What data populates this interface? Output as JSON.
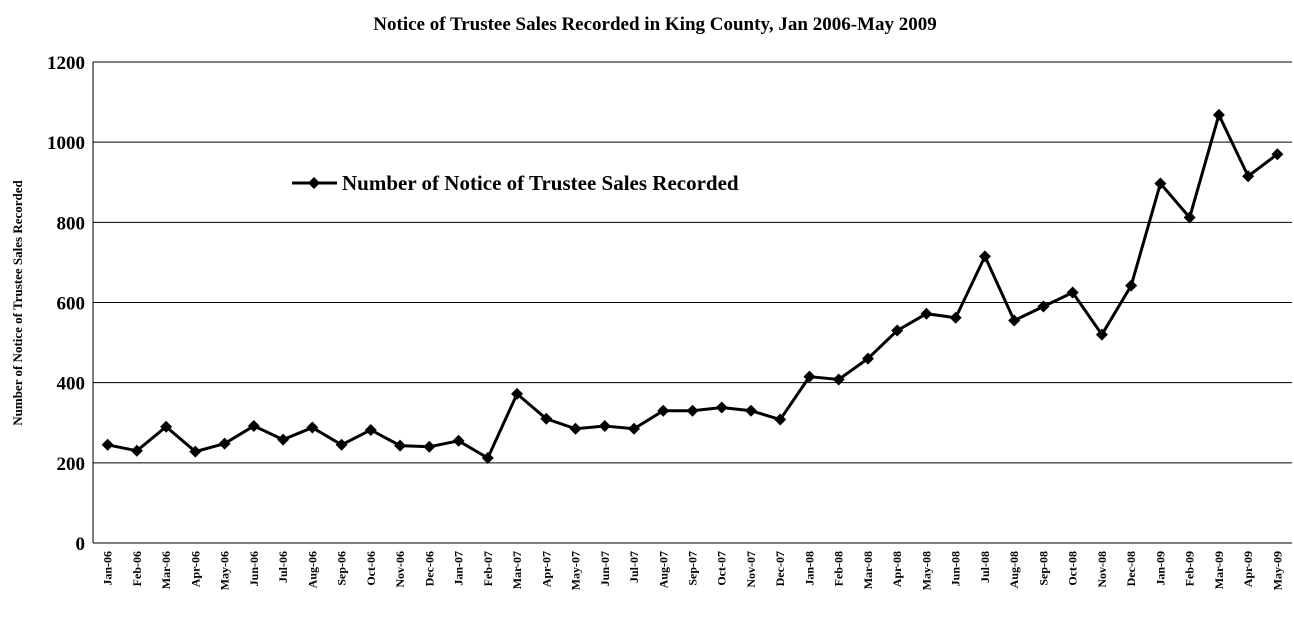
{
  "chart_data": {
    "type": "line",
    "title": "Notice of Trustee Sales Recorded in King County, Jan 2006-May 2009",
    "y_label": "Number of Notice of Trustee Sales Recorded",
    "categories": [
      "Jan-06",
      "Feb-06",
      "Mar-06",
      "Apr-06",
      "May-06",
      "Jun-06",
      "Jul-06",
      "Aug-06",
      "Sep-06",
      "Oct-06",
      "Nov-06",
      "Dec-06",
      "Jan-07",
      "Feb-07",
      "Mar-07",
      "Apr-07",
      "May-07",
      "Jun-07",
      "Jul-07",
      "Aug-07",
      "Sep-07",
      "Oct-07",
      "Nov-07",
      "Dec-07",
      "Jan-08",
      "Feb-08",
      "Mar-08",
      "Apr-08",
      "May-08",
      "Jun-08",
      "Jul-08",
      "Aug-08",
      "Sep-08",
      "Oct-08",
      "Nov-08",
      "Dec-08",
      "Jan-09",
      "Feb-09",
      "Mar-09",
      "Apr-09",
      "May-09"
    ],
    "series": [
      {
        "name": "Number of Notice of Trustee Sales Recorded",
        "color": "#000000",
        "values": [
          245,
          230,
          290,
          228,
          248,
          292,
          258,
          288,
          245,
          282,
          243,
          240,
          255,
          212,
          372,
          310,
          285,
          292,
          285,
          330,
          330,
          338,
          330,
          308,
          415,
          408,
          460,
          530,
          572,
          562,
          715,
          555,
          590,
          625,
          520,
          642,
          897,
          812,
          1068,
          915,
          970
        ]
      }
    ],
    "ylim": [
      0,
      1200
    ],
    "yticks": [
      0,
      200,
      400,
      600,
      800,
      1000,
      1200
    ],
    "grid": true
  }
}
